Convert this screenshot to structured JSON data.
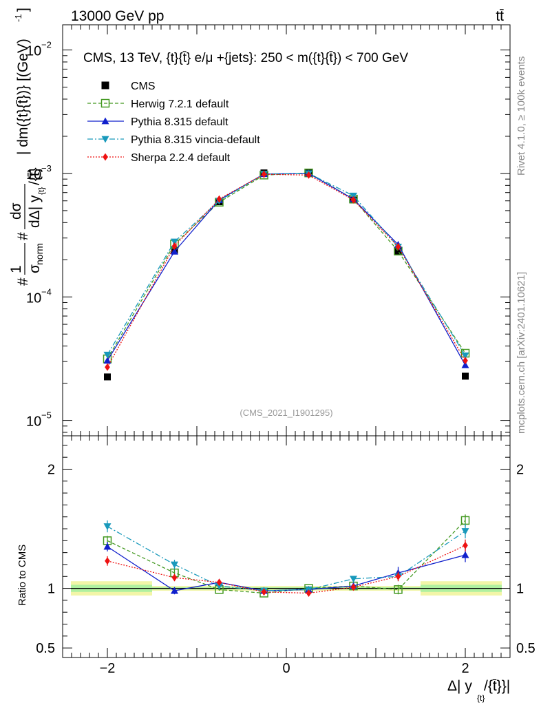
{
  "header": {
    "left": "13000 GeV pp",
    "right": "tt̄"
  },
  "side_labels": {
    "rivet": "Rivet 4.1.0, ≥ 100k events",
    "mcplots": "mcplots.cern.ch [arXiv:2401.10621]"
  },
  "chart_data": [
    {
      "type": "line",
      "panel": "main",
      "title": "CMS, 13 TeV, {t}{t̄} e/μ +{jets}: 250 < m({t}{t̄}) < 700 GeV",
      "analysis_tag": "(CMS_2021_I1901295)",
      "ylabel": "#1/σnorm #dσ/dΔ|y_{t}/{t̄}| dm({t}{t̄}) [(GeV)^-1]",
      "ylabel_parts": {
        "top": "| dm({t}{t̄})} [(GeV)",
        "exp": "-1",
        "close": "]",
        "mid": "dΔ| y",
        "sub": "{t}",
        "den": "/{t̄}",
        "dsig": "dσ",
        "hash": "#",
        "one": "1",
        "signorm": "σ",
        "norm": "norm"
      },
      "yscale": "log",
      "ylim": [
        7.5e-06,
        0.016
      ],
      "xlim": [
        -2.5,
        2.5
      ],
      "y_ticks": [
        {
          "base": "10",
          "exp": "−5",
          "value": 1e-05
        },
        {
          "base": "10",
          "exp": "−4",
          "value": 0.0001
        },
        {
          "base": "10",
          "exp": "−3",
          "value": 0.001
        },
        {
          "base": "10",
          "exp": "−2",
          "value": 0.01
        }
      ],
      "x": [
        -2.0,
        -1.25,
        -0.75,
        -0.25,
        0.25,
        0.75,
        1.25,
        2.0
      ],
      "series": [
        {
          "name": "CMS",
          "color": "#000000",
          "marker": "square-filled",
          "line": "none",
          "values": [
            2.25e-05,
            0.000238,
            0.00059,
            0.00101,
            0.00101,
            0.00061,
            0.000235,
            2.28e-05
          ]
        },
        {
          "name": "Herwig 7.2.1 default",
          "color": "#449922",
          "marker": "square-open",
          "line": "dashed",
          "values": [
            3.15e-05,
            0.000268,
            0.000585,
            0.00097,
            0.00101,
            0.00062,
            0.000235,
            3.5e-05
          ]
        },
        {
          "name": "Pythia 8.315 default",
          "color": "#1020cc",
          "marker": "triangle-up",
          "line": "solid",
          "values": [
            3.05e-05,
            0.000233,
            0.00061,
            0.00099,
            0.001,
            0.00062,
            0.000265,
            2.8e-05
          ]
        },
        {
          "name": "Pythia 8.315 vincia-default",
          "color": "#1899bb",
          "marker": "triangle-down",
          "line": "dashdot",
          "values": [
            3.4e-05,
            0.00028,
            0.0006,
            0.00099,
            0.001,
            0.00066,
            0.000255,
            3.35e-05
          ]
        },
        {
          "name": "Sherpa 2.2.4 default",
          "color": "#ee1111",
          "marker": "diamond",
          "line": "dotted",
          "values": [
            2.7e-05,
            0.000258,
            0.00062,
            0.000985,
            0.00097,
            0.00061,
            0.000255,
            3.05e-05
          ]
        }
      ]
    },
    {
      "type": "line",
      "panel": "ratio",
      "ylabel": "Ratio to CMS",
      "ylim": [
        0.42,
        2.28
      ],
      "xlim": [
        -2.5,
        2.5
      ],
      "xlabel": "Δ| y",
      "xlabel_sub": "{t}",
      "xlabel_tail": "/{t̄}}|",
      "y_ticks": [
        {
          "label": "0.5",
          "value": 0.5
        },
        {
          "label": "1",
          "value": 1
        },
        {
          "label": "2",
          "value": 2
        }
      ],
      "x_ticks": [
        {
          "label": "−2",
          "value": -2
        },
        {
          "label": "0",
          "value": 0
        },
        {
          "label": "2",
          "value": 2
        }
      ],
      "uncertainty_bands": {
        "edges": [
          -2.5,
          -1.5,
          -1.0,
          -0.5,
          0.0,
          0.5,
          1.0,
          1.5,
          2.5
        ],
        "stat": [
          0.03,
          0.01,
          0.01,
          0.01,
          0.01,
          0.01,
          0.01,
          0.03
        ],
        "total": [
          0.06,
          0.02,
          0.02,
          0.02,
          0.02,
          0.02,
          0.02,
          0.06
        ],
        "stat_color": "#b0f0a0",
        "total_color": "#f2f5a8"
      },
      "x": [
        -2.0,
        -1.25,
        -0.75,
        -0.25,
        0.25,
        0.75,
        1.25,
        2.0
      ],
      "series": [
        {
          "name": "Herwig 7.2.1 default",
          "color": "#449922",
          "marker": "square-open",
          "line": "dashed",
          "values": [
            1.4,
            1.13,
            0.99,
            0.96,
            1.0,
            1.02,
            0.99,
            1.57
          ],
          "errors": [
            0.04,
            0.03,
            0.01,
            0.01,
            0.01,
            0.01,
            0.04,
            0.05
          ]
        },
        {
          "name": "Pythia 8.315 default",
          "color": "#1020cc",
          "marker": "triangle-up",
          "line": "solid",
          "values": [
            1.35,
            0.98,
            1.05,
            0.98,
            0.99,
            1.02,
            1.13,
            1.28
          ],
          "errors": [
            0.04,
            0.03,
            0.01,
            0.01,
            0.01,
            0.01,
            0.05,
            0.06
          ]
        },
        {
          "name": "Pythia 8.315 vincia-default",
          "color": "#1899bb",
          "marker": "triangle-down",
          "line": "dashdot",
          "values": [
            1.52,
            1.2,
            1.02,
            0.98,
            0.99,
            1.08,
            1.1,
            1.48
          ],
          "errors": [
            0.05,
            0.04,
            0.01,
            0.01,
            0.01,
            0.01,
            0.04,
            0.06
          ]
        },
        {
          "name": "Sherpa 2.2.4 default",
          "color": "#ee1111",
          "marker": "diamond",
          "line": "dotted",
          "values": [
            1.23,
            1.09,
            1.05,
            0.97,
            0.96,
            1.01,
            1.1,
            1.36
          ],
          "errors": [
            0.04,
            0.03,
            0.01,
            0.01,
            0.01,
            0.01,
            0.04,
            0.05
          ]
        }
      ]
    }
  ]
}
